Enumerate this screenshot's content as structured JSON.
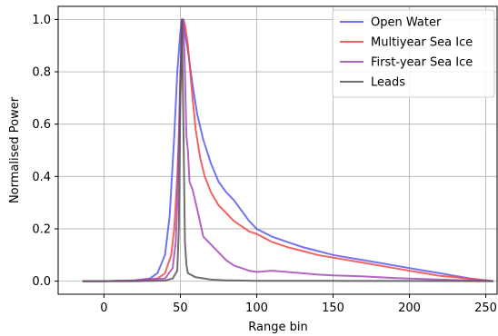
{
  "chart_data": {
    "type": "line",
    "title": "",
    "xlabel": "Range bin",
    "ylabel": "Normalised Power",
    "xlim": [
      -30,
      258
    ],
    "ylim": [
      -0.05,
      1.05
    ],
    "xticks": [
      0,
      50,
      100,
      150,
      200,
      250
    ],
    "yticks": [
      0.0,
      0.2,
      0.4,
      0.6,
      0.8,
      1.0
    ],
    "xtick_labels": [
      "0",
      "50",
      "100",
      "150",
      "200",
      "250"
    ],
    "ytick_labels": [
      "0.0",
      "0.2",
      "0.4",
      "0.6",
      "0.8",
      "1.0"
    ],
    "grid": true,
    "legend_position": "top-right",
    "series": [
      {
        "name": "Open Water",
        "color": "#5a5af0",
        "x": [
          -14,
          0,
          20,
          30,
          35,
          40,
          43,
          46,
          48,
          50,
          51,
          52,
          53,
          55,
          58,
          61,
          65,
          70,
          75,
          80,
          85,
          90,
          95,
          100,
          110,
          120,
          130,
          140,
          150,
          160,
          170,
          180,
          190,
          200,
          210,
          220,
          230,
          240,
          250,
          255
        ],
        "y": [
          0.0,
          0.0,
          0.003,
          0.01,
          0.03,
          0.1,
          0.25,
          0.55,
          0.8,
          0.95,
          1.0,
          0.98,
          0.95,
          0.88,
          0.75,
          0.64,
          0.54,
          0.45,
          0.38,
          0.34,
          0.31,
          0.27,
          0.23,
          0.2,
          0.17,
          0.15,
          0.13,
          0.115,
          0.1,
          0.09,
          0.08,
          0.07,
          0.06,
          0.05,
          0.04,
          0.03,
          0.02,
          0.01,
          0.003,
          0.0
        ]
      },
      {
        "name": "Multiyear Sea Ice",
        "color": "#f04848",
        "x": [
          -14,
          0,
          20,
          35,
          40,
          44,
          46,
          48,
          50,
          51,
          52,
          53,
          55,
          58,
          60,
          63,
          66,
          70,
          75,
          80,
          85,
          90,
          95,
          100,
          110,
          120,
          130,
          140,
          150,
          160,
          170,
          180,
          190,
          200,
          210,
          220,
          230,
          240,
          250,
          255
        ],
        "y": [
          0.0,
          0.0,
          0.002,
          0.01,
          0.03,
          0.1,
          0.2,
          0.4,
          0.7,
          0.9,
          1.0,
          0.98,
          0.9,
          0.7,
          0.58,
          0.47,
          0.4,
          0.34,
          0.29,
          0.26,
          0.23,
          0.21,
          0.19,
          0.18,
          0.15,
          0.13,
          0.115,
          0.1,
          0.09,
          0.08,
          0.07,
          0.06,
          0.05,
          0.04,
          0.03,
          0.02,
          0.015,
          0.008,
          0.003,
          0.0
        ]
      },
      {
        "name": "First-year Sea Ice",
        "color": "#a64ab8",
        "x": [
          -14,
          0,
          20,
          40,
          45,
          47,
          48,
          49,
          50,
          51,
          52,
          53,
          54,
          55,
          56,
          58,
          60,
          62,
          65,
          70,
          75,
          80,
          85,
          90,
          95,
          100,
          110,
          120,
          130,
          140,
          150,
          160,
          170,
          180,
          190,
          200,
          210,
          220,
          230,
          240,
          250,
          255
        ],
        "y": [
          0.0,
          0.0,
          0.002,
          0.01,
          0.05,
          0.15,
          0.3,
          0.55,
          0.8,
          0.95,
          1.0,
          0.8,
          0.55,
          0.5,
          0.38,
          0.35,
          0.3,
          0.25,
          0.17,
          0.14,
          0.11,
          0.08,
          0.06,
          0.05,
          0.04,
          0.035,
          0.04,
          0.035,
          0.03,
          0.025,
          0.022,
          0.02,
          0.018,
          0.015,
          0.012,
          0.01,
          0.008,
          0.006,
          0.004,
          0.002,
          0.001,
          0.0
        ]
      },
      {
        "name": "Leads",
        "color": "#555555",
        "x": [
          -14,
          0,
          20,
          40,
          45,
          48,
          49,
          50,
          51,
          52,
          53,
          54,
          55,
          60,
          70,
          80,
          100,
          150,
          200,
          250,
          255
        ],
        "y": [
          0.0,
          0.0,
          0.0,
          0.002,
          0.01,
          0.04,
          0.2,
          0.7,
          1.0,
          0.6,
          0.15,
          0.06,
          0.03,
          0.015,
          0.006,
          0.003,
          0.0015,
          0.001,
          0.0005,
          0.0,
          0.0
        ]
      }
    ]
  }
}
